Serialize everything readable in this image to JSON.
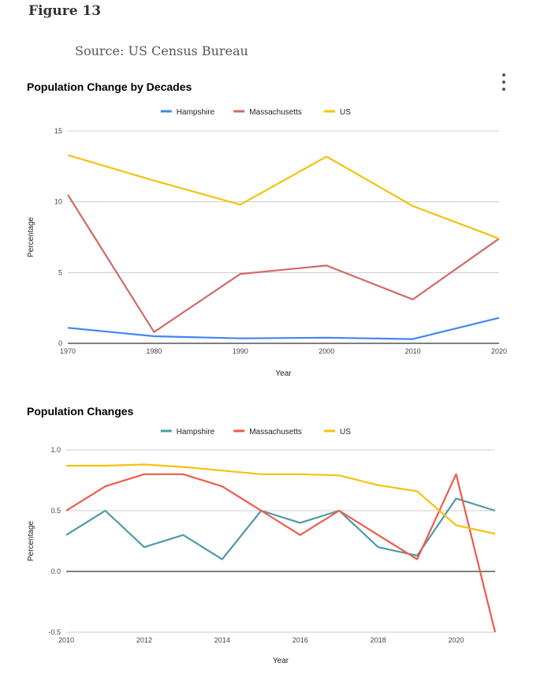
{
  "page": {
    "figure_label": "Figure 13",
    "source": "Source: US Census Bureau"
  },
  "chart_data": [
    {
      "type": "line",
      "title": "Population Change by Decades",
      "xlabel": "Year",
      "ylabel": "Percentage",
      "x": [
        1970,
        1980,
        1990,
        2000,
        2010,
        2020
      ],
      "xticks": [
        "1970",
        "1980",
        "1990",
        "2000",
        "2010",
        "2020"
      ],
      "yticks": [
        "0",
        "5",
        "10",
        "15"
      ],
      "ylim": [
        0,
        15
      ],
      "grid": true,
      "legend_position": "top",
      "series": [
        {
          "name": "Hampshire",
          "color": "#4285F4",
          "values": [
            1.1,
            0.5,
            0.35,
            0.4,
            0.3,
            1.8
          ]
        },
        {
          "name": "Massachusetts",
          "color": "#D06B66",
          "values": [
            10.5,
            0.8,
            4.9,
            5.5,
            3.1,
            7.4
          ]
        },
        {
          "name": "US",
          "color": "#F4C20D",
          "values": [
            13.3,
            11.5,
            9.8,
            13.2,
            9.7,
            7.4
          ]
        }
      ]
    },
    {
      "type": "line",
      "title": "Population Changes",
      "xlabel": "Year",
      "ylabel": "Percentage",
      "x": [
        2010,
        2011,
        2012,
        2013,
        2014,
        2015,
        2016,
        2017,
        2018,
        2019,
        2020,
        2021
      ],
      "xticks": [
        "2010",
        "2012",
        "2014",
        "2016",
        "2018",
        "2020"
      ],
      "yticks": [
        "-0.5",
        "0.0",
        "0.5",
        "1.0"
      ],
      "ylim": [
        -0.5,
        1.0
      ],
      "grid": true,
      "legend_position": "top",
      "series": [
        {
          "name": "Hampshire",
          "color": "#4E9AA8",
          "values": [
            0.3,
            0.5,
            0.2,
            0.3,
            0.1,
            0.5,
            0.4,
            0.5,
            0.2,
            0.13,
            0.6,
            0.5
          ]
        },
        {
          "name": "Massachusetts",
          "color": "#EE5B4B",
          "values": [
            0.5,
            0.7,
            0.8,
            0.8,
            0.7,
            0.5,
            0.3,
            0.5,
            0.3,
            0.1,
            0.8,
            -0.5
          ]
        },
        {
          "name": "US",
          "color": "#F4C20D",
          "values": [
            0.87,
            0.87,
            0.88,
            0.86,
            0.83,
            0.8,
            0.8,
            0.79,
            0.71,
            0.66,
            0.38,
            0.31
          ]
        }
      ]
    }
  ]
}
